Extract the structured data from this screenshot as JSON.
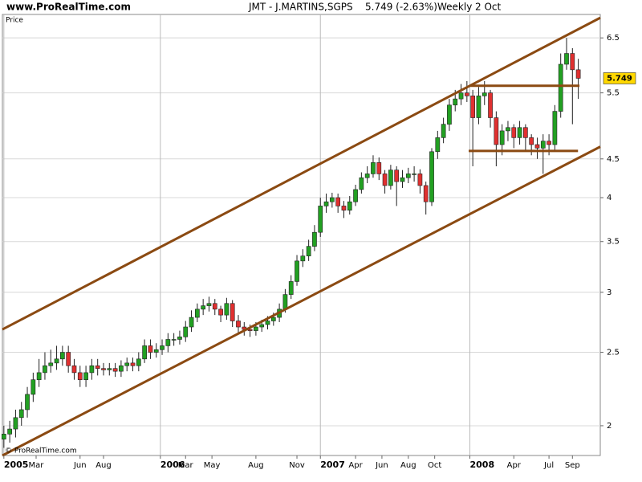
{
  "chart_data": {
    "type": "candlestick",
    "site": "www.ProRealTime.com",
    "title": "JMT - J.MARTINS,SGPS",
    "subtitle": "5.749 (-2.63%)",
    "period": "Weekly",
    "date": "2 Oct",
    "y_label": "Price",
    "copyright": "© ProRealTime.com",
    "x": [
      0,
      2,
      4,
      6,
      8,
      10,
      12,
      14,
      16,
      18,
      20,
      22,
      24,
      26,
      28,
      30,
      32,
      34,
      36,
      38,
      40,
      42,
      44,
      46,
      48,
      50,
      52,
      54,
      56,
      58,
      60,
      62,
      64,
      66,
      68,
      70,
      72,
      74,
      76,
      78,
      80,
      82,
      84,
      86,
      88,
      90,
      92,
      94,
      96,
      98,
      100,
      102,
      104,
      106,
      108,
      110,
      112,
      114,
      116,
      118,
      120,
      122,
      124,
      126,
      128,
      130,
      132,
      134,
      136,
      138,
      140,
      142,
      144,
      146,
      148,
      150,
      152,
      154,
      156,
      158,
      160,
      162,
      164,
      166,
      168,
      170,
      172,
      174,
      176,
      178,
      180,
      182,
      184,
      186,
      188,
      190,
      192,
      194,
      196
    ],
    "open": [
      1.92,
      1.95,
      1.98,
      2.05,
      2.1,
      2.2,
      2.3,
      2.35,
      2.4,
      2.42,
      2.45,
      2.5,
      2.4,
      2.35,
      2.3,
      2.35,
      2.4,
      2.38,
      2.37,
      2.38,
      2.36,
      2.4,
      2.42,
      2.4,
      2.45,
      2.55,
      2.5,
      2.52,
      2.55,
      2.6,
      2.6,
      2.62,
      2.7,
      2.78,
      2.85,
      2.88,
      2.9,
      2.85,
      2.8,
      2.9,
      2.75,
      2.7,
      2.68,
      2.67,
      2.7,
      2.72,
      2.75,
      2.78,
      2.85,
      2.98,
      3.1,
      3.3,
      3.35,
      3.45,
      3.6,
      3.9,
      3.95,
      4.0,
      3.9,
      3.85,
      3.95,
      4.1,
      4.25,
      4.3,
      4.45,
      4.3,
      4.15,
      4.35,
      4.2,
      4.25,
      4.3,
      4.3,
      4.15,
      3.95,
      4.6,
      4.8,
      5.0,
      5.3,
      5.4,
      5.5,
      5.45,
      5.1,
      5.45,
      5.5,
      5.1,
      4.7,
      4.9,
      4.95,
      4.8,
      4.95,
      4.8,
      4.7,
      4.65,
      4.75,
      4.7,
      5.2,
      6.0,
      6.2,
      5.9
    ],
    "high": [
      2.0,
      2.03,
      2.1,
      2.15,
      2.25,
      2.35,
      2.45,
      2.5,
      2.52,
      2.55,
      2.55,
      2.55,
      2.45,
      2.4,
      2.4,
      2.45,
      2.45,
      2.42,
      2.42,
      2.42,
      2.44,
      2.46,
      2.46,
      2.5,
      2.6,
      2.6,
      2.57,
      2.6,
      2.65,
      2.65,
      2.67,
      2.75,
      2.84,
      2.9,
      2.94,
      2.96,
      2.94,
      2.88,
      2.95,
      2.93,
      2.8,
      2.74,
      2.72,
      2.74,
      2.76,
      2.79,
      2.82,
      2.9,
      3.03,
      3.16,
      3.36,
      3.42,
      3.52,
      3.68,
      4.0,
      4.05,
      4.06,
      4.05,
      3.96,
      4.02,
      4.16,
      4.32,
      4.4,
      4.55,
      4.52,
      4.35,
      4.42,
      4.4,
      4.35,
      4.38,
      4.4,
      4.36,
      4.2,
      4.65,
      4.9,
      5.1,
      5.4,
      5.55,
      5.65,
      5.7,
      5.55,
      5.6,
      5.7,
      5.55,
      5.2,
      5.0,
      5.05,
      5.0,
      5.05,
      5.0,
      4.85,
      4.8,
      4.85,
      4.85,
      5.3,
      6.2,
      6.5,
      6.3,
      6.1
    ],
    "low": [
      1.87,
      1.9,
      1.93,
      2.0,
      2.05,
      2.15,
      2.25,
      2.3,
      2.35,
      2.37,
      2.4,
      2.35,
      2.3,
      2.25,
      2.25,
      2.3,
      2.33,
      2.33,
      2.33,
      2.32,
      2.32,
      2.36,
      2.36,
      2.36,
      2.42,
      2.45,
      2.46,
      2.48,
      2.5,
      2.55,
      2.56,
      2.58,
      2.66,
      2.74,
      2.8,
      2.83,
      2.8,
      2.74,
      2.76,
      2.7,
      2.64,
      2.63,
      2.62,
      2.63,
      2.66,
      2.68,
      2.71,
      2.74,
      2.82,
      2.94,
      3.06,
      3.24,
      3.3,
      3.4,
      3.55,
      3.82,
      3.88,
      3.82,
      3.76,
      3.8,
      3.9,
      4.05,
      4.18,
      4.25,
      4.22,
      4.05,
      4.1,
      3.9,
      4.12,
      4.18,
      4.2,
      4.05,
      3.8,
      3.9,
      4.5,
      4.72,
      4.9,
      5.2,
      5.3,
      5.35,
      4.4,
      5.0,
      5.3,
      4.95,
      4.4,
      4.55,
      4.75,
      4.65,
      4.7,
      4.6,
      4.55,
      4.5,
      4.3,
      4.55,
      4.6,
      5.1,
      5.9,
      5.0,
      5.4
    ],
    "close": [
      1.95,
      1.98,
      2.05,
      2.1,
      2.2,
      2.3,
      2.35,
      2.4,
      2.42,
      2.45,
      2.5,
      2.4,
      2.35,
      2.3,
      2.35,
      2.4,
      2.38,
      2.37,
      2.38,
      2.36,
      2.4,
      2.42,
      2.4,
      2.45,
      2.55,
      2.5,
      2.52,
      2.55,
      2.6,
      2.6,
      2.62,
      2.7,
      2.78,
      2.85,
      2.88,
      2.9,
      2.85,
      2.8,
      2.9,
      2.75,
      2.7,
      2.68,
      2.67,
      2.7,
      2.72,
      2.75,
      2.78,
      2.85,
      2.98,
      3.1,
      3.3,
      3.35,
      3.45,
      3.6,
      3.9,
      3.95,
      4.0,
      3.9,
      3.85,
      3.95,
      4.1,
      4.25,
      4.3,
      4.45,
      4.3,
      4.15,
      4.35,
      4.2,
      4.25,
      4.3,
      4.3,
      4.15,
      3.95,
      4.6,
      4.8,
      5.0,
      5.3,
      5.4,
      5.5,
      5.45,
      5.1,
      5.45,
      5.5,
      5.1,
      4.7,
      4.9,
      4.95,
      4.8,
      4.95,
      4.8,
      4.7,
      4.65,
      4.75,
      4.7,
      5.2,
      6.0,
      6.2,
      5.9,
      5.749
    ],
    "up_color": "#22a022",
    "down_color": "#e03030",
    "xlim": [
      -0.5,
      203.5
    ],
    "xticks": [
      {
        "value": 0,
        "label": "2005",
        "major": true
      },
      {
        "value": 11,
        "label": "Mar"
      },
      {
        "value": 26,
        "label": "Jun"
      },
      {
        "value": 34,
        "label": "Aug"
      },
      {
        "value": 53.4,
        "label": "2006",
        "major": true
      },
      {
        "value": 62,
        "label": "Mar"
      },
      {
        "value": 71,
        "label": "May"
      },
      {
        "value": 86,
        "label": "Aug"
      },
      {
        "value": 100,
        "label": "Nov"
      },
      {
        "value": 108,
        "label": "2007",
        "major": true
      },
      {
        "value": 120,
        "label": "Apr"
      },
      {
        "value": 129,
        "label": "Jun"
      },
      {
        "value": 138,
        "label": "Aug"
      },
      {
        "value": 147,
        "label": "Oct"
      },
      {
        "value": 159,
        "label": "2008",
        "major": true
      },
      {
        "value": 174,
        "label": "Apr"
      },
      {
        "value": 186,
        "label": "Jul"
      },
      {
        "value": 194,
        "label": "Sep"
      }
    ],
    "ylim": [
      1.827,
      6.98
    ],
    "yticks": [
      2,
      2.5,
      3,
      3.5,
      4,
      4.5,
      5.5,
      6.5
    ],
    "log_scale": true,
    "grid": true,
    "line_color": "#8b4a12",
    "lines": [
      {
        "x": [
          -0.5,
          203.5
        ],
        "y": [
          2.68,
          6.91
        ]
      },
      {
        "x": [
          -0.5,
          203.5
        ],
        "y": [
          1.827,
          4.67
        ]
      },
      {
        "x": [
          159.2,
          196.4
        ],
        "y": [
          5.62,
          5.62
        ]
      },
      {
        "x": [
          158.6,
          195.9
        ],
        "y": [
          4.61,
          4.61
        ]
      }
    ],
    "last_color": "#ffd800"
  }
}
